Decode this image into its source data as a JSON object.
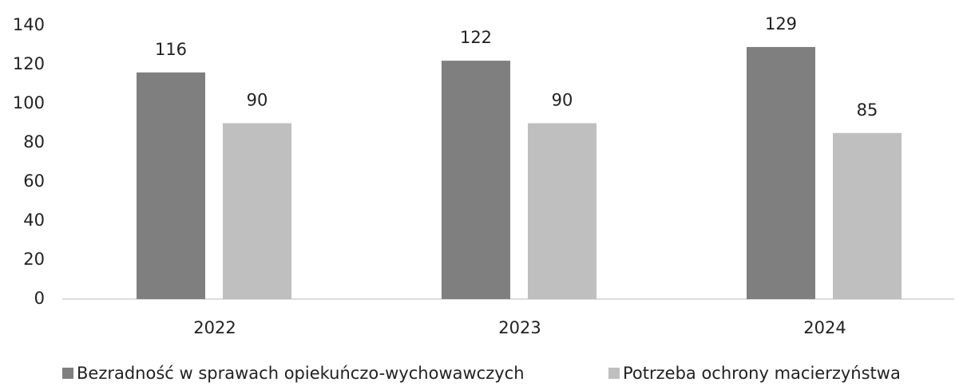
{
  "chart_data": {
    "type": "bar",
    "categories": [
      "2022",
      "2023",
      "2024"
    ],
    "series": [
      {
        "name": "Bezradność w sprawach opiekuńczo-wychowawczych",
        "color": "#7f7f7f",
        "values": [
          116,
          122,
          129
        ]
      },
      {
        "name": "Potrzeba ochrony macierzyństwa",
        "color": "#bfbfbf",
        "values": [
          90,
          90,
          85
        ]
      }
    ],
    "ylim": [
      0,
      140
    ],
    "yticks": [
      0,
      20,
      40,
      60,
      80,
      100,
      120,
      140
    ],
    "grid": false,
    "legend": "bottom"
  }
}
